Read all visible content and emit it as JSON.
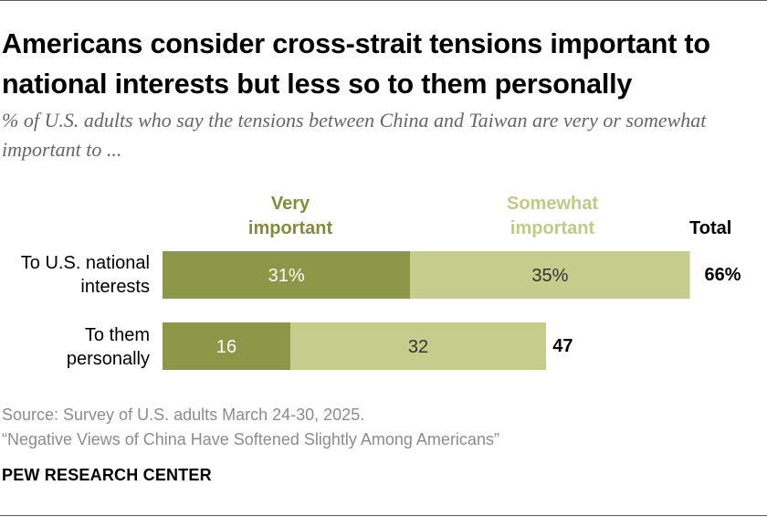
{
  "title": "Americans consider cross-strait tensions important to national interests but less so to them personally",
  "subtitle": "% of U.S. adults who say the tensions between China and Taiwan are very or somewhat important to ...",
  "legend": {
    "very": "Very\nimportant",
    "somewhat": "Somewhat\nimportant",
    "total": "Total"
  },
  "colors": {
    "very": "#8c9748",
    "somewhat": "#c5cc8c",
    "very_text": "#838c3e",
    "somewhat_text": "#c1c98a"
  },
  "chart_data": {
    "type": "bar",
    "orientation": "horizontal",
    "stacked": true,
    "categories": [
      "To U.S. national\ninterests",
      "To them\npersonally"
    ],
    "series": [
      {
        "name": "Very important",
        "values": [
          31,
          16
        ],
        "labels": [
          "31%",
          "16"
        ]
      },
      {
        "name": "Somewhat important",
        "values": [
          35,
          32
        ],
        "labels": [
          "35%",
          "32"
        ]
      }
    ],
    "totals": [
      66,
      47
    ],
    "total_labels": [
      "66%",
      "47"
    ],
    "xlim": [
      0,
      100
    ],
    "grid": false,
    "legend_position": "top"
  },
  "source": {
    "line1": "Source: Survey of U.S. adults March 24-30, 2025.",
    "line2": "“Negative Views of China Have Softened Slightly Among Americans”"
  },
  "brand": "PEW RESEARCH CENTER"
}
